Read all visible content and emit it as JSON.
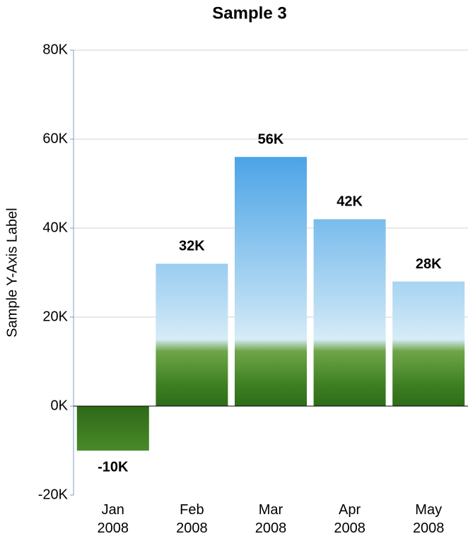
{
  "chart_data": {
    "type": "bar",
    "title": "Sample 3",
    "y_label": "Sample Y-Axis Label",
    "categories": [
      "Jan 2008",
      "Feb 2008",
      "Mar 2008",
      "Apr 2008",
      "May 2008"
    ],
    "values": [
      -10000,
      32000,
      56000,
      42000,
      28000
    ],
    "value_labels": [
      "-10K",
      "32K",
      "56K",
      "42K",
      "28K"
    ],
    "ylim": [
      -20000,
      80000
    ],
    "yticks": [
      {
        "value": -20000,
        "label": "-20K"
      },
      {
        "value": 0,
        "label": "0K"
      },
      {
        "value": 20000,
        "label": "20K"
      },
      {
        "value": 40000,
        "label": "40K"
      },
      {
        "value": 60000,
        "label": "60K"
      },
      {
        "value": 80000,
        "label": "80K"
      }
    ],
    "grid": true
  }
}
